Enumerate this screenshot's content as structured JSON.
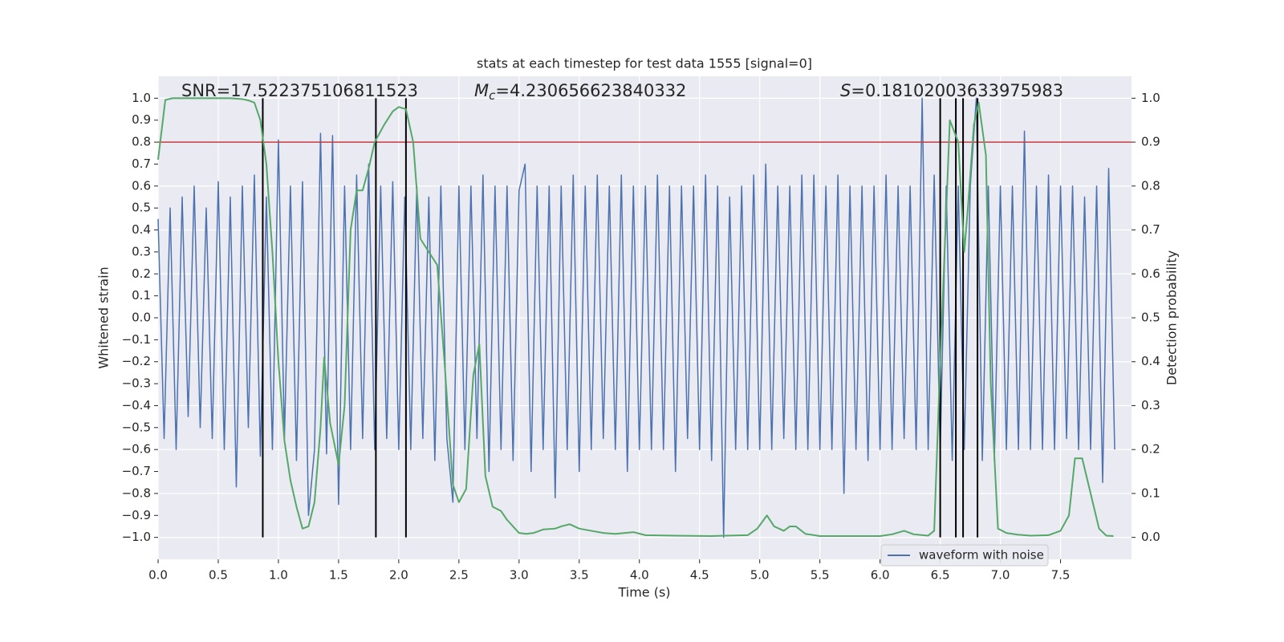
{
  "chart_data": {
    "type": "line",
    "title": "stats at each timestep for test data 1555 [signal=0]",
    "xlabel": "Time (s)",
    "ylabel": "Whitened strain",
    "y2label": "Detection probability",
    "xlim": [
      0,
      8.09
    ],
    "ylim": [
      -1.1,
      1.1
    ],
    "y2lim": [
      -0.05,
      1.05
    ],
    "xticks": [
      {
        "value": 0,
        "label": "0.0"
      },
      {
        "value": 0.5,
        "label": "0.5"
      },
      {
        "value": 1,
        "label": "1.0"
      },
      {
        "value": 1.5,
        "label": "1.5"
      },
      {
        "value": 2,
        "label": "2.0"
      },
      {
        "value": 2.5,
        "label": "2.5"
      },
      {
        "value": 3,
        "label": "3.0"
      },
      {
        "value": 3.5,
        "label": "3.5"
      },
      {
        "value": 4,
        "label": "4.0"
      },
      {
        "value": 4.5,
        "label": "4.5"
      },
      {
        "value": 5,
        "label": "5.0"
      },
      {
        "value": 5.5,
        "label": "5.5"
      },
      {
        "value": 6,
        "label": "6.0"
      },
      {
        "value": 6.5,
        "label": "6.5"
      },
      {
        "value": 7,
        "label": "7.0"
      },
      {
        "value": 7.5,
        "label": "7.5"
      }
    ],
    "yticks": [
      {
        "value": 1,
        "label": "1.0"
      },
      {
        "value": 0.9,
        "label": "0.9"
      },
      {
        "value": 0.8,
        "label": "0.8"
      },
      {
        "value": 0.7,
        "label": "0.7"
      },
      {
        "value": 0.6,
        "label": "0.6"
      },
      {
        "value": 0.5,
        "label": "0.5"
      },
      {
        "value": 0.4,
        "label": "0.4"
      },
      {
        "value": 0.3,
        "label": "0.3"
      },
      {
        "value": 0.2,
        "label": "0.2"
      },
      {
        "value": 0.1,
        "label": "0.1"
      },
      {
        "value": 0,
        "label": "0.0"
      },
      {
        "value": -0.1,
        "label": "−0.1"
      },
      {
        "value": -0.2,
        "label": "−0.2"
      },
      {
        "value": -0.3,
        "label": "−0.3"
      },
      {
        "value": -0.4,
        "label": "−0.4"
      },
      {
        "value": -0.5,
        "label": "−0.5"
      },
      {
        "value": -0.6,
        "label": "−0.6"
      },
      {
        "value": -0.7,
        "label": "−0.7"
      },
      {
        "value": -0.8,
        "label": "−0.8"
      },
      {
        "value": -0.9,
        "label": "−0.9"
      },
      {
        "value": -1,
        "label": "−1.0"
      }
    ],
    "y2ticks": [
      {
        "value": 1,
        "label": "1.0"
      },
      {
        "value": 0.9,
        "label": "0.9"
      },
      {
        "value": 0.8,
        "label": "0.8"
      },
      {
        "value": 0.7,
        "label": "0.7"
      },
      {
        "value": 0.6,
        "label": "0.6"
      },
      {
        "value": 0.5,
        "label": "0.5"
      },
      {
        "value": 0.4,
        "label": "0.4"
      },
      {
        "value": 0.3,
        "label": "0.3"
      },
      {
        "value": 0.2,
        "label": "0.2"
      },
      {
        "value": 0.1,
        "label": "0.1"
      },
      {
        "value": 0,
        "label": "0.0"
      }
    ],
    "grid": true,
    "legend": "lower right",
    "annotations": [
      {
        "text": "SNR=17.522375106811523"
      },
      {
        "symbol": "M",
        "subscript": "c",
        "text": "=4.230656623840332"
      },
      {
        "symbol": "S",
        "text": "=0.18102003633975983"
      }
    ],
    "threshold": {
      "value": 0.9,
      "axis": "y2",
      "color": "#c03d3e"
    },
    "vlines": {
      "x": [
        0.87,
        1.81,
        2.06,
        6.5,
        6.63,
        6.69,
        6.81
      ],
      "ymin": -1,
      "ymax": 1,
      "color": "#000000"
    },
    "series": [
      {
        "name": "waveform with noise",
        "color": "#4c72b0",
        "x": [
          0,
          0.05,
          0.1,
          0.15,
          0.2,
          0.25,
          0.3,
          0.35,
          0.4,
          0.45,
          0.5,
          0.55,
          0.6,
          0.65,
          0.7,
          0.75,
          0.8,
          0.85,
          0.9,
          0.95,
          1,
          1.05,
          1.1,
          1.15,
          1.2,
          1.25,
          1.3,
          1.35,
          1.4,
          1.45,
          1.5,
          1.55,
          1.6,
          1.65,
          1.7,
          1.75,
          1.8,
          1.85,
          1.9,
          1.95,
          2,
          2.05,
          2.1,
          2.15,
          2.2,
          2.25,
          2.3,
          2.35,
          2.4,
          2.45,
          2.5,
          2.55,
          2.6,
          2.65,
          2.7,
          2.75,
          2.8,
          2.85,
          2.9,
          2.95,
          3,
          3.05,
          3.1,
          3.15,
          3.2,
          3.25,
          3.3,
          3.35,
          3.4,
          3.45,
          3.5,
          3.55,
          3.6,
          3.65,
          3.7,
          3.75,
          3.8,
          3.85,
          3.9,
          3.95,
          4,
          4.05,
          4.1,
          4.15,
          4.2,
          4.25,
          4.3,
          4.35,
          4.4,
          4.45,
          4.5,
          4.55,
          4.6,
          4.65,
          4.7,
          4.75,
          4.8,
          4.85,
          4.9,
          4.95,
          5,
          5.05,
          5.1,
          5.15,
          5.2,
          5.25,
          5.3,
          5.35,
          5.4,
          5.45,
          5.5,
          5.55,
          5.6,
          5.65,
          5.7,
          5.75,
          5.8,
          5.85,
          5.9,
          5.95,
          6,
          6.05,
          6.1,
          6.15,
          6.2,
          6.25,
          6.3,
          6.35,
          6.4,
          6.45,
          6.5,
          6.55,
          6.6,
          6.65,
          6.7,
          6.75,
          6.8,
          6.85,
          6.9,
          6.95,
          7,
          7.05,
          7.1,
          7.15,
          7.2,
          7.25,
          7.3,
          7.35,
          7.4,
          7.45,
          7.5,
          7.55,
          7.6,
          7.65,
          7.7,
          7.75,
          7.8,
          7.85,
          7.9,
          7.95
        ],
        "values": [
          0.45,
          -0.55,
          0.5,
          -0.6,
          0.55,
          -0.45,
          0.6,
          -0.5,
          0.5,
          -0.55,
          0.62,
          -0.6,
          0.55,
          -0.77,
          0.6,
          -0.5,
          0.65,
          -0.63,
          0.55,
          -0.6,
          0.81,
          -0.55,
          0.6,
          -0.65,
          0.62,
          -0.9,
          -0.6,
          0.84,
          -0.62,
          0.83,
          -0.85,
          0.6,
          -0.6,
          0.65,
          -0.55,
          0.7,
          -0.6,
          0.6,
          -0.55,
          0.62,
          -0.6,
          0.55,
          -0.6,
          0.6,
          -0.55,
          0.55,
          -0.65,
          0.6,
          -0.55,
          -0.84,
          0.6,
          -0.6,
          0.6,
          -0.55,
          0.65,
          -0.7,
          0.6,
          -0.6,
          0.6,
          -0.65,
          0.58,
          0.7,
          -0.7,
          0.6,
          -0.6,
          0.6,
          -0.82,
          0.6,
          -0.6,
          0.65,
          -0.7,
          0.6,
          -0.6,
          0.65,
          -0.55,
          0.6,
          -0.6,
          0.65,
          -0.7,
          0.6,
          -0.6,
          0.6,
          -0.6,
          0.65,
          -0.6,
          0.6,
          -0.7,
          0.6,
          -0.55,
          0.6,
          -0.6,
          0.65,
          -0.65,
          0.6,
          -1.0,
          0.55,
          -0.6,
          0.6,
          -0.6,
          0.65,
          -0.6,
          0.7,
          -0.6,
          0.6,
          -0.55,
          0.6,
          -0.6,
          0.65,
          -0.6,
          0.65,
          -0.6,
          0.6,
          -0.6,
          0.65,
          -0.8,
          0.6,
          -0.6,
          0.6,
          -0.65,
          0.6,
          -0.6,
          0.65,
          -0.6,
          0.6,
          -0.55,
          0.6,
          -0.6,
          1.0,
          -0.6,
          0.65,
          -0.6,
          0.6,
          -0.65,
          0.6,
          -0.6,
          0.6,
          1.0,
          -0.65,
          0.6,
          -0.65,
          0.6,
          -0.6,
          0.6,
          -0.6,
          0.85,
          -0.6,
          0.6,
          -0.6,
          0.65,
          -0.6,
          0.6,
          -0.55,
          0.6,
          -0.6,
          0.55,
          -0.6,
          0.6,
          -0.75,
          0.68,
          -0.6
        ]
      },
      {
        "color": "#55a868",
        "axis": "y2",
        "x": [
          0,
          0.06,
          0.12,
          0.2,
          0.3,
          0.4,
          0.5,
          0.6,
          0.7,
          0.75,
          0.8,
          0.85,
          0.9,
          0.95,
          1,
          1.05,
          1.1,
          1.15,
          1.2,
          1.25,
          1.3,
          1.35,
          1.38,
          1.43,
          1.5,
          1.55,
          1.6,
          1.65,
          1.7,
          1.75,
          1.8,
          1.88,
          1.95,
          2,
          2.06,
          2.12,
          2.18,
          2.25,
          2.32,
          2.38,
          2.45,
          2.5,
          2.56,
          2.62,
          2.67,
          2.72,
          2.78,
          2.85,
          2.9,
          3,
          3.06,
          3.12,
          3.2,
          3.3,
          3.35,
          3.42,
          3.5,
          3.6,
          3.7,
          3.8,
          3.95,
          4.05,
          4.3,
          4.6,
          4.9,
          4.98,
          5.06,
          5.12,
          5.2,
          5.25,
          5.3,
          5.38,
          5.5,
          5.75,
          6,
          6.1,
          6.2,
          6.28,
          6.4,
          6.45,
          6.5,
          6.58,
          6.65,
          6.7,
          6.73,
          6.78,
          6.82,
          6.88,
          6.92,
          6.98,
          7.05,
          7.15,
          7.25,
          7.4,
          7.5,
          7.57,
          7.62,
          7.68,
          7.75,
          7.82,
          7.88,
          7.94
        ],
        "values": [
          0.86,
          0.996,
          1.0,
          1.0,
          1.0,
          1.0,
          1.0,
          1.0,
          0.998,
          0.995,
          0.99,
          0.95,
          0.85,
          0.65,
          0.4,
          0.22,
          0.13,
          0.07,
          0.02,
          0.025,
          0.08,
          0.25,
          0.41,
          0.26,
          0.165,
          0.3,
          0.7,
          0.79,
          0.79,
          0.84,
          0.9,
          0.94,
          0.97,
          0.98,
          0.975,
          0.9,
          0.68,
          0.65,
          0.62,
          0.4,
          0.12,
          0.08,
          0.11,
          0.37,
          0.44,
          0.14,
          0.07,
          0.06,
          0.04,
          0.01,
          0.008,
          0.01,
          0.018,
          0.02,
          0.025,
          0.03,
          0.02,
          0.015,
          0.01,
          0.008,
          0.012,
          0.005,
          0.004,
          0.003,
          0.005,
          0.02,
          0.05,
          0.025,
          0.015,
          0.025,
          0.025,
          0.008,
          0.003,
          0.003,
          0.003,
          0.007,
          0.015,
          0.007,
          0.004,
          0.015,
          0.4,
          0.95,
          0.9,
          0.65,
          0.75,
          0.94,
          0.99,
          0.87,
          0.35,
          0.02,
          0.01,
          0.006,
          0.004,
          0.005,
          0.015,
          0.05,
          0.18,
          0.18,
          0.1,
          0.02,
          0.004,
          0.003
        ]
      }
    ]
  }
}
